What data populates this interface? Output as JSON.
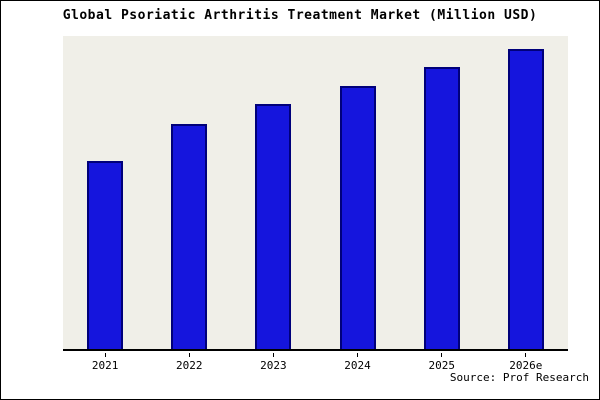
{
  "title": "Global Psoriatic Arthritis Treatment Market (Million USD)",
  "source": "Source: Prof Research",
  "colors": {
    "bar_fill": "#1515dd",
    "bar_border": "#00007a",
    "plot_background": "#f0efe8",
    "axis": "#000000"
  },
  "chart_data": {
    "type": "bar",
    "title": "Global Psoriatic Arthritis Treatment Market (Million USD)",
    "categories": [
      "2021",
      "2022",
      "2023",
      "2024",
      "2025",
      "2026e"
    ],
    "values": [
      627,
      750,
      817,
      877,
      940,
      1000
    ],
    "xlabel": "",
    "ylabel": "",
    "ylim": [
      0,
      1050
    ],
    "grid": false,
    "legend_position": "none",
    "value_units": "relative (no y-axis scale shown in image)"
  }
}
